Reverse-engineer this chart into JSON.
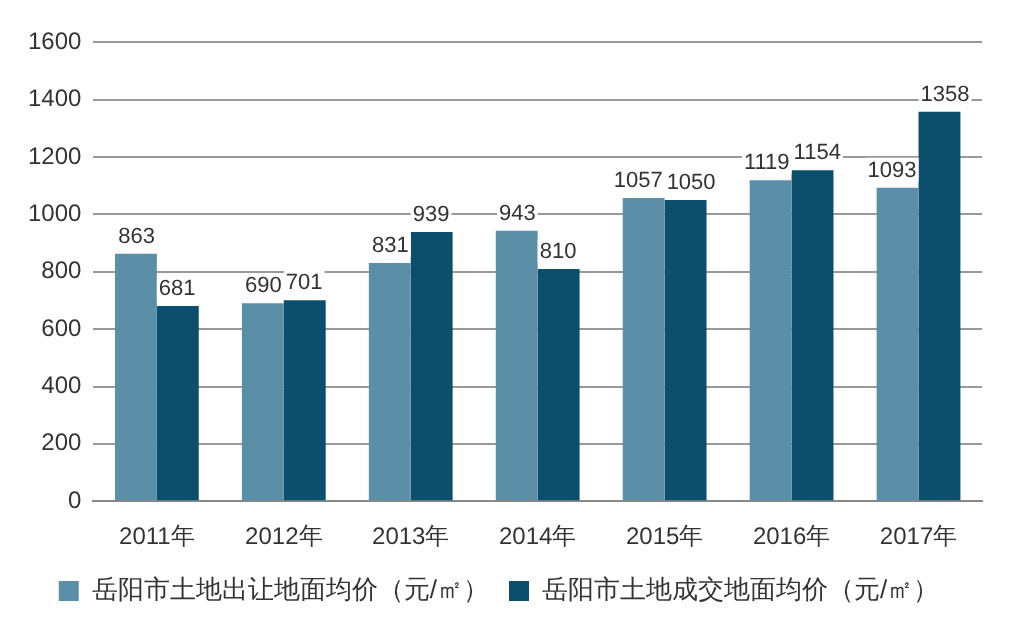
{
  "chart_data": {
    "type": "bar",
    "categories": [
      "2011年",
      "2012年",
      "2013年",
      "2014年",
      "2015年",
      "2016年",
      "2017年"
    ],
    "series": [
      {
        "name": "岳阳市土地出让地面均价（元/㎡）",
        "color": "#5b8fa8",
        "values": [
          863,
          690,
          831,
          943,
          1057,
          1119,
          1093
        ]
      },
      {
        "name": "岳阳市土地成交地面均价（元/㎡）",
        "color": "#0b4f6c",
        "values": [
          681,
          701,
          939,
          810,
          1050,
          1154,
          1358
        ]
      }
    ],
    "ylim": [
      0,
      1600
    ],
    "yticks": [
      0,
      200,
      400,
      600,
      800,
      1000,
      1200,
      1400,
      1600
    ],
    "grid": "y",
    "legend": "bottom",
    "data_labels": true
  }
}
